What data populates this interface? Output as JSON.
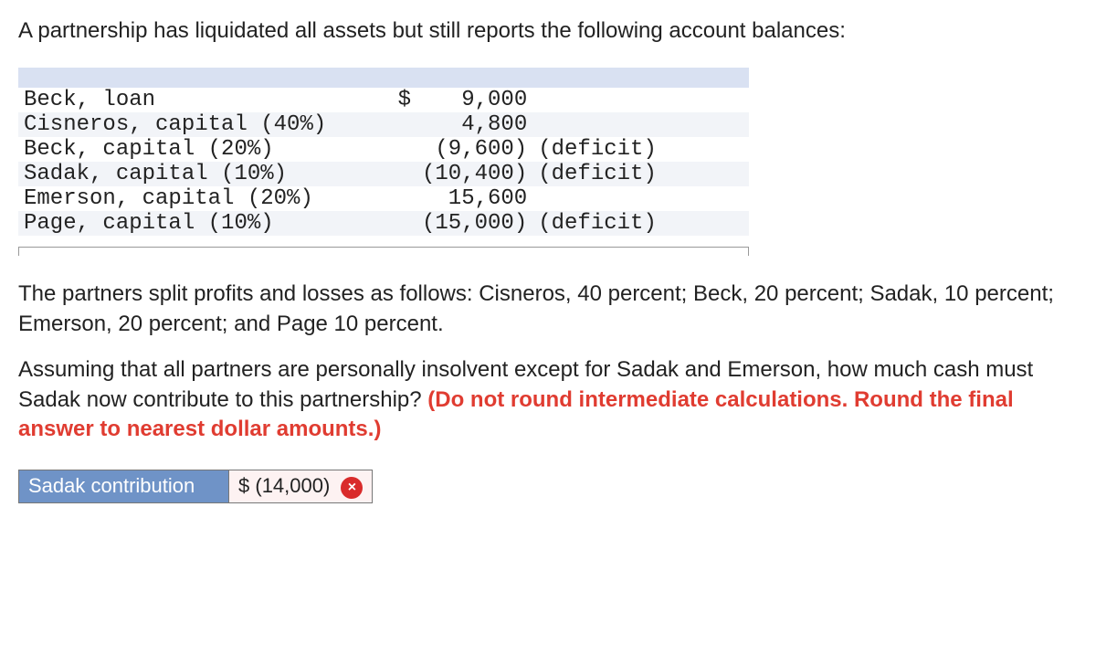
{
  "intro": "A partnership has liquidated all assets but still reports the following account balances:",
  "balances": [
    {
      "label": "Beck, loan",
      "currency": "$",
      "amount": "9,000",
      "note": ""
    },
    {
      "label": "Cisneros, capital (40%)",
      "currency": "",
      "amount": "4,800",
      "note": ""
    },
    {
      "label": "Beck, capital (20%)",
      "currency": "",
      "amount": "(9,600)",
      "note": "(deficit)"
    },
    {
      "label": "Sadak, capital (10%)",
      "currency": "",
      "amount": "(10,400)",
      "note": "(deficit)"
    },
    {
      "label": "Emerson, capital (20%)",
      "currency": "",
      "amount": "15,600",
      "note": ""
    },
    {
      "label": "Page, capital (10%)",
      "currency": "",
      "amount": "(15,000)",
      "note": "(deficit)"
    }
  ],
  "para_split": "The partners split profits and losses as follows: Cisneros, 40 percent; Beck, 20 percent; Sadak, 10 percent; Emerson, 20 percent; and Page 10 percent.",
  "para_question_plain": "Assuming that all partners are personally insolvent except for Sadak and Emerson, how much cash must Sadak now contribute to this partnership? ",
  "para_question_red": "(Do not round intermediate calculations. Round the final answer to nearest dollar amounts.)",
  "answer": {
    "label": "Sadak contribution",
    "currency": "$",
    "value": "(14,000)",
    "mark": "×",
    "correct": false
  },
  "colors": {
    "header_fill": "#d9e1f2",
    "alt_row_fill": "#f2f4f8",
    "instruction_red": "#e03c31",
    "answer_label_bg": "#6f93c7",
    "answer_value_bg": "#fdf2f2",
    "badge_bg": "#d92b2b"
  }
}
